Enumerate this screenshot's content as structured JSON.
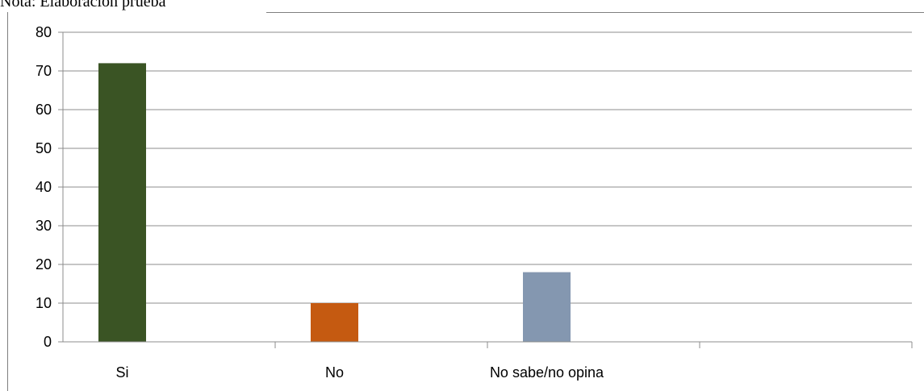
{
  "note": "Nota: Elaboración prueba",
  "chart_data": {
    "type": "bar",
    "categories": [
      "Si",
      "No",
      "No sabe/no opina",
      ""
    ],
    "values": [
      72,
      10,
      18,
      null
    ],
    "colors": [
      "#3a5424",
      "#c55a11",
      "#8497b0"
    ],
    "ylim": [
      0,
      80
    ],
    "yticks": [
      0,
      10,
      20,
      30,
      40,
      50,
      60,
      70,
      80
    ],
    "grid": true,
    "legend": "none",
    "title": "",
    "xlabel": "",
    "ylabel": ""
  }
}
